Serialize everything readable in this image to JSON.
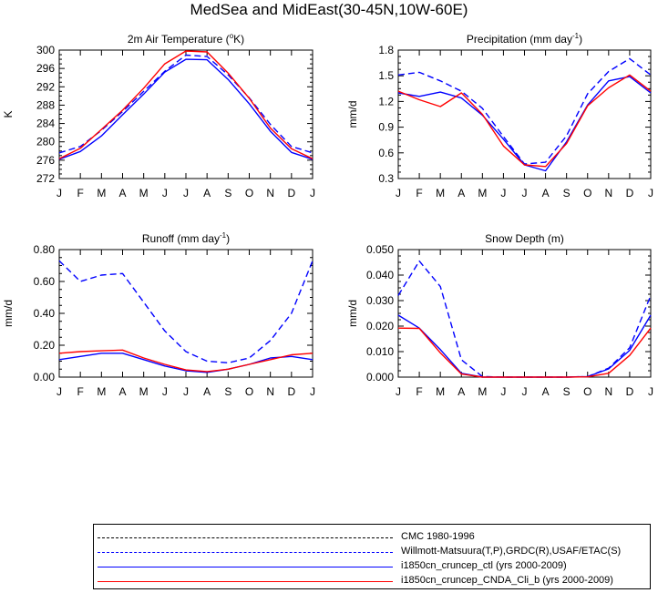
{
  "figure": {
    "title": "MedSea and MidEast(30-45N,10W-60E)"
  },
  "months": [
    "J",
    "F",
    "M",
    "A",
    "M",
    "J",
    "J",
    "A",
    "S",
    "O",
    "N",
    "D",
    "J"
  ],
  "legend": [
    {
      "label": "CMC 1980-1996",
      "color": "#000000",
      "style": "dashed"
    },
    {
      "label": "Willmott-Matsuura(T,P),GRDC(R),USAF/ETAC(S)",
      "color": "#0000ff",
      "style": "dashed"
    },
    {
      "label": "i1850cn_cruncep_ctl (yrs 2000-2009)",
      "color": "#0000ff",
      "style": "solid"
    },
    {
      "label": "i1850cn_cruncep_CNDA_Cli_b (yrs 2000-2009)",
      "color": "#ff0000",
      "style": "solid"
    }
  ],
  "chart_data": [
    {
      "type": "line",
      "title": "2m Air Temperature (",
      "title_sup": "o",
      "title_after": "K)",
      "ylabel": "K",
      "ylim": [
        272,
        300
      ],
      "yticks": [
        "272",
        "276",
        "280",
        "284",
        "288",
        "292",
        "296",
        "300"
      ],
      "yticks_values": [
        272,
        276,
        280,
        284,
        288,
        292,
        296,
        300
      ],
      "x": [
        "J",
        "F",
        "M",
        "A",
        "M",
        "J",
        "J",
        "A",
        "S",
        "O",
        "N",
        "D",
        "J"
      ],
      "series": [
        {
          "color": "#0000ff",
          "style": "dashed",
          "values": [
            277.6,
            279.0,
            282.5,
            286.6,
            291.0,
            295.4,
            298.9,
            298.6,
            294.6,
            289.6,
            283.8,
            279.0,
            277.6
          ]
        },
        {
          "color": "#0000ff",
          "style": "solid",
          "values": [
            276.2,
            277.9,
            281.3,
            285.9,
            290.4,
            295.2,
            298.0,
            297.9,
            293.6,
            288.3,
            282.3,
            277.7,
            276.2
          ]
        },
        {
          "color": "#ff0000",
          "style": "solid",
          "values": [
            276.3,
            278.6,
            282.7,
            286.9,
            291.7,
            297.0,
            299.8,
            299.6,
            295.0,
            289.5,
            283.0,
            278.5,
            276.3
          ]
        }
      ]
    },
    {
      "type": "line",
      "title": "Precipitation (mm day",
      "title_sup": "-1",
      "title_after": ")",
      "ylabel": "mm/d",
      "ylim": [
        0.3,
        1.8
      ],
      "yticks": [
        "0.3",
        "0.6",
        "0.9",
        "1.2",
        "1.5",
        "1.8"
      ],
      "yticks_values": [
        0.3,
        0.6,
        0.9,
        1.2,
        1.5,
        1.8
      ],
      "x": [
        "J",
        "F",
        "M",
        "A",
        "M",
        "J",
        "J",
        "A",
        "S",
        "O",
        "N",
        "D",
        "J"
      ],
      "series": [
        {
          "color": "#0000ff",
          "style": "dashed",
          "values": [
            1.51,
            1.54,
            1.44,
            1.32,
            1.12,
            0.79,
            0.47,
            0.49,
            0.8,
            1.29,
            1.55,
            1.7,
            1.51
          ]
        },
        {
          "color": "#0000ff",
          "style": "solid",
          "values": [
            1.3,
            1.26,
            1.31,
            1.24,
            1.04,
            0.76,
            0.46,
            0.39,
            0.73,
            1.16,
            1.44,
            1.49,
            1.3
          ]
        },
        {
          "color": "#ff0000",
          "style": "solid",
          "values": [
            1.32,
            1.22,
            1.14,
            1.3,
            1.05,
            0.68,
            0.46,
            0.44,
            0.71,
            1.15,
            1.36,
            1.51,
            1.32
          ]
        }
      ]
    },
    {
      "type": "line",
      "title": "Runoff (mm day",
      "title_sup": "-1",
      "title_after": ")",
      "ylabel": "mm/d",
      "ylim": [
        0.0,
        0.8
      ],
      "yticks": [
        "0.00",
        "0.20",
        "0.40",
        "0.60",
        "0.80"
      ],
      "yticks_values": [
        0.0,
        0.2,
        0.4,
        0.6,
        0.8
      ],
      "x": [
        "J",
        "F",
        "M",
        "A",
        "M",
        "J",
        "J",
        "A",
        "S",
        "O",
        "N",
        "D",
        "J"
      ],
      "series": [
        {
          "color": "#0000ff",
          "style": "dashed",
          "values": [
            0.73,
            0.6,
            0.64,
            0.65,
            0.47,
            0.29,
            0.16,
            0.1,
            0.09,
            0.12,
            0.23,
            0.4,
            0.73
          ]
        },
        {
          "color": "#0000ff",
          "style": "solid",
          "values": [
            0.11,
            0.13,
            0.15,
            0.15,
            0.11,
            0.07,
            0.04,
            0.03,
            0.05,
            0.08,
            0.12,
            0.13,
            0.11
          ]
        },
        {
          "color": "#ff0000",
          "style": "solid",
          "values": [
            0.15,
            0.16,
            0.165,
            0.17,
            0.12,
            0.08,
            0.045,
            0.035,
            0.05,
            0.08,
            0.11,
            0.14,
            0.15
          ]
        }
      ]
    },
    {
      "type": "line",
      "title": "Snow Depth (m)",
      "title_sup": "",
      "title_after": "",
      "ylabel": "mm/d",
      "ylim": [
        0.0,
        0.05
      ],
      "yticks": [
        "0.000",
        "0.010",
        "0.020",
        "0.030",
        "0.040",
        "0.050"
      ],
      "yticks_values": [
        0.0,
        0.01,
        0.02,
        0.03,
        0.04,
        0.05
      ],
      "x": [
        "J",
        "F",
        "M",
        "A",
        "M",
        "J",
        "J",
        "A",
        "S",
        "O",
        "N",
        "D",
        "J"
      ],
      "series": [
        {
          "color": "#0000ff",
          "style": "dashed",
          "values": [
            0.032,
            0.0455,
            0.0355,
            0.0068,
            0.0002,
            0.0,
            0.0,
            0.0,
            0.0,
            0.0002,
            0.0035,
            0.0115,
            0.032
          ]
        },
        {
          "color": "#0000ff",
          "style": "solid",
          "values": [
            0.0243,
            0.0192,
            0.0108,
            0.0015,
            0.0,
            0.0,
            0.0,
            0.0,
            0.0,
            0.0002,
            0.0032,
            0.0105,
            0.0243
          ]
        },
        {
          "color": "#ff0000",
          "style": "solid",
          "values": [
            0.0192,
            0.0191,
            0.0095,
            0.0012,
            0.0,
            0.0,
            0.0,
            0.0,
            0.0,
            0.0001,
            0.0015,
            0.0085,
            0.0192
          ]
        }
      ]
    }
  ]
}
